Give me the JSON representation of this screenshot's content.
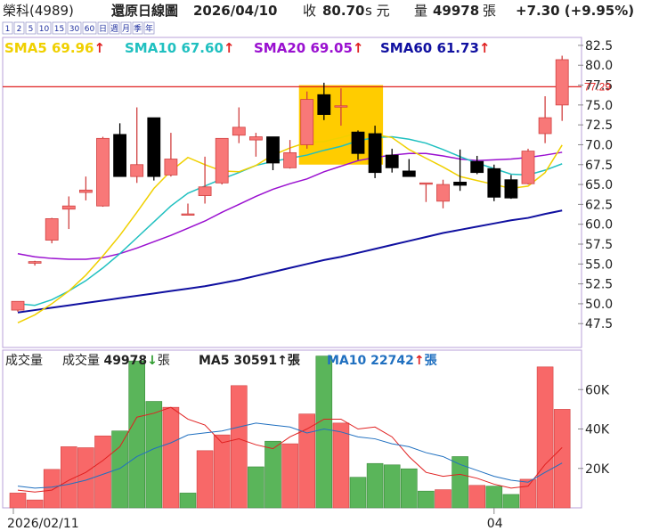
{
  "header": {
    "stock": "榮科(4989)",
    "view": "還原日線圖",
    "date": "2026/04/10",
    "close_label": "收",
    "close": "80.70",
    "close_suffix": "s 元",
    "volume_label": "量",
    "volume": "49978",
    "volume_unit": "張",
    "change": "+7.30 (+9.95%)"
  },
  "period_buttons": [
    "1",
    "2",
    "5",
    "10",
    "15",
    "30",
    "60",
    "日",
    "週",
    "月",
    "季",
    "年"
  ],
  "ma_legend": [
    {
      "label": "SMA5",
      "value": "69.96",
      "arrow": "up",
      "color": "#f0d000"
    },
    {
      "label": "SMA10",
      "value": "67.60",
      "arrow": "up",
      "color": "#20c0c0"
    },
    {
      "label": "SMA20",
      "value": "69.05",
      "arrow": "up",
      "color": "#9a10d0"
    },
    {
      "label": "SMA60",
      "value": "61.73",
      "arrow": "up",
      "color": "#1010a0"
    }
  ],
  "price_line": {
    "value": 77.29,
    "label": "77.29",
    "color": "#e02020"
  },
  "volume_header": {
    "title": "成交量",
    "vol_label": "成交量",
    "vol_value": "49978",
    "vol_arrow": "down",
    "vol_unit": "張",
    "ma5_label": "MA5",
    "ma5_value": "30591",
    "ma5_arrow": "up",
    "ma5_unit": "張",
    "ma10_label": "MA10",
    "ma10_value": "22742",
    "ma10_arrow": "up",
    "ma10_unit": "張"
  },
  "colors": {
    "up": "#f87878",
    "down": "#000000",
    "vol_up": "#f86868",
    "vol_down": "#5ab55a",
    "highlight": "#ffcc00",
    "border": "#b8a0d8"
  },
  "chart_data": {
    "type": "candlestick",
    "x_labels": [
      {
        "index": 0,
        "label": "2026/02/11"
      },
      {
        "index": 28,
        "label": "04"
      }
    ],
    "price_ylim": [
      44.5,
      83.5
    ],
    "price_ticks": [
      "82.5",
      "80.0",
      "77.5",
      "75.0",
      "72.5",
      "70.0",
      "67.5",
      "65.0",
      "62.5",
      "60.0",
      "57.5",
      "55.0",
      "52.5",
      "50.0",
      "47.5"
    ],
    "volume_ylim": [
      0,
      80000
    ],
    "volume_ticks": [
      {
        "value": 60000,
        "label": "60K"
      },
      {
        "value": 40000,
        "label": "40K"
      },
      {
        "value": 20000,
        "label": "20K"
      }
    ],
    "highlight_range": {
      "from_index": 17,
      "to_index": 21,
      "price_from": 67.5,
      "price_to": 77.5
    },
    "candles": [
      {
        "o": 49.2,
        "h": 50.3,
        "l": 49.0,
        "c": 50.3
      },
      {
        "o": 55.1,
        "h": 55.4,
        "l": 54.8,
        "c": 55.3
      },
      {
        "o": 58.0,
        "h": 60.8,
        "l": 57.6,
        "c": 60.7
      },
      {
        "o": 61.9,
        "h": 63.5,
        "l": 59.4,
        "c": 62.3
      },
      {
        "o": 64.0,
        "h": 66.0,
        "l": 63.0,
        "c": 64.3
      },
      {
        "o": 62.3,
        "h": 71.0,
        "l": 62.2,
        "c": 70.8
      },
      {
        "o": 71.3,
        "h": 72.7,
        "l": 66.0,
        "c": 66.0
      },
      {
        "o": 66.0,
        "h": 74.7,
        "l": 65.2,
        "c": 67.5
      },
      {
        "o": 73.4,
        "h": 73.4,
        "l": 65.5,
        "c": 66.0
      },
      {
        "o": 66.2,
        "h": 71.5,
        "l": 66.0,
        "c": 68.2
      },
      {
        "o": 61.3,
        "h": 62.6,
        "l": 61.1,
        "c": 61.3
      },
      {
        "o": 63.6,
        "h": 68.5,
        "l": 62.6,
        "c": 64.7
      },
      {
        "o": 65.2,
        "h": 70.8,
        "l": 65.0,
        "c": 70.8
      },
      {
        "o": 71.2,
        "h": 74.7,
        "l": 70.2,
        "c": 72.2
      },
      {
        "o": 70.6,
        "h": 71.5,
        "l": 68.5,
        "c": 71.0
      },
      {
        "o": 71.0,
        "h": 71.0,
        "l": 66.8,
        "c": 67.7
      },
      {
        "o": 67.1,
        "h": 70.6,
        "l": 67.0,
        "c": 69.0
      },
      {
        "o": 70.0,
        "h": 76.7,
        "l": 69.5,
        "c": 75.7
      },
      {
        "o": 76.3,
        "h": 77.8,
        "l": 73.1,
        "c": 73.8
      },
      {
        "o": 74.9,
        "h": 77.1,
        "l": 72.4,
        "c": 74.9
      },
      {
        "o": 71.6,
        "h": 71.8,
        "l": 68.1,
        "c": 68.9
      },
      {
        "o": 71.4,
        "h": 72.4,
        "l": 65.8,
        "c": 66.5
      },
      {
        "o": 68.7,
        "h": 69.5,
        "l": 66.5,
        "c": 67.1
      },
      {
        "o": 66.7,
        "h": 68.2,
        "l": 66.0,
        "c": 66.0
      },
      {
        "o": 65.2,
        "h": 65.2,
        "l": 62.8,
        "c": 65.2
      },
      {
        "o": 62.9,
        "h": 65.6,
        "l": 62.0,
        "c": 65.0
      },
      {
        "o": 65.3,
        "h": 69.4,
        "l": 64.2,
        "c": 64.9
      },
      {
        "o": 67.9,
        "h": 68.6,
        "l": 66.3,
        "c": 66.5
      },
      {
        "o": 67.0,
        "h": 67.5,
        "l": 62.9,
        "c": 63.4
      },
      {
        "o": 65.6,
        "h": 66.2,
        "l": 63.2,
        "c": 63.3
      },
      {
        "o": 65.1,
        "h": 69.5,
        "l": 65.0,
        "c": 69.2
      },
      {
        "o": 71.4,
        "h": 76.1,
        "l": 70.2,
        "c": 73.4
      },
      {
        "o": 75.0,
        "h": 81.2,
        "l": 73.0,
        "c": 80.7
      }
    ],
    "sma5": [
      47.6,
      48.6,
      50.0,
      51.6,
      53.6,
      56.0,
      58.6,
      61.5,
      64.5,
      66.7,
      68.4,
      67.5,
      66.7,
      66.6,
      67.4,
      68.7,
      69.6,
      70.3,
      70.4,
      70.9,
      71.5,
      71.3,
      70.9,
      69.4,
      68.3,
      67.2,
      66.0,
      65.5,
      65.0,
      64.5,
      64.8,
      66.5,
      69.96
    ],
    "sma10": [
      50.0,
      49.8,
      50.5,
      51.6,
      52.9,
      54.5,
      56.3,
      58.3,
      60.3,
      62.3,
      63.9,
      64.8,
      65.7,
      66.5,
      67.4,
      67.9,
      68.3,
      68.7,
      69.3,
      69.8,
      70.5,
      70.9,
      71.0,
      70.7,
      70.2,
      69.4,
      68.5,
      67.7,
      67.0,
      66.3,
      66.2,
      66.8,
      67.6
    ],
    "sma20": [
      56.3,
      55.9,
      55.7,
      55.6,
      55.6,
      55.8,
      56.3,
      57.0,
      57.8,
      58.6,
      59.5,
      60.4,
      61.5,
      62.5,
      63.5,
      64.4,
      65.1,
      65.7,
      66.6,
      67.3,
      68.0,
      68.4,
      68.7,
      68.9,
      68.9,
      68.6,
      68.2,
      68.0,
      68.1,
      68.2,
      68.4,
      68.7,
      69.05
    ],
    "sma60": [
      48.9,
      49.2,
      49.5,
      49.8,
      50.1,
      50.4,
      50.7,
      51.0,
      51.3,
      51.6,
      51.9,
      52.2,
      52.6,
      53.0,
      53.5,
      54.0,
      54.5,
      55.0,
      55.5,
      55.9,
      56.4,
      56.9,
      57.4,
      57.9,
      58.4,
      58.9,
      59.3,
      59.7,
      60.1,
      60.5,
      60.8,
      61.3,
      61.73
    ],
    "volumes": [
      {
        "v": 7500,
        "up": true
      },
      {
        "v": 4000,
        "up": true
      },
      {
        "v": 19500,
        "up": true
      },
      {
        "v": 31000,
        "up": true
      },
      {
        "v": 30500,
        "up": true
      },
      {
        "v": 36500,
        "up": true
      },
      {
        "v": 39000,
        "up": false
      },
      {
        "v": 74500,
        "up": false
      },
      {
        "v": 54000,
        "up": false
      },
      {
        "v": 51000,
        "up": true
      },
      {
        "v": 7500,
        "up": false
      },
      {
        "v": 29000,
        "up": true
      },
      {
        "v": 37000,
        "up": true
      },
      {
        "v": 62000,
        "up": true
      },
      {
        "v": 20800,
        "up": false
      },
      {
        "v": 33800,
        "up": false
      },
      {
        "v": 32500,
        "up": true
      },
      {
        "v": 47600,
        "up": true
      },
      {
        "v": 77000,
        "up": false
      },
      {
        "v": 43000,
        "up": true
      },
      {
        "v": 15500,
        "up": false
      },
      {
        "v": 22500,
        "up": false
      },
      {
        "v": 21800,
        "up": false
      },
      {
        "v": 19800,
        "up": false
      },
      {
        "v": 8500,
        "up": false
      },
      {
        "v": 9200,
        "up": true
      },
      {
        "v": 26000,
        "up": false
      },
      {
        "v": 11400,
        "up": true
      },
      {
        "v": 11000,
        "up": false
      },
      {
        "v": 6800,
        "up": false
      },
      {
        "v": 14500,
        "up": true
      },
      {
        "v": 71500,
        "up": true
      },
      {
        "v": 49978,
        "up": true
      }
    ],
    "vol_ma5": [
      9000,
      8000,
      9000,
      14000,
      18000,
      24000,
      31000,
      46000,
      48000,
      51000,
      45000,
      42000,
      33000,
      35000,
      32000,
      30000,
      36000,
      40000,
      45000,
      45000,
      40000,
      41000,
      36000,
      26000,
      18000,
      16000,
      17000,
      15000,
      12000,
      10000,
      11000,
      22000,
      30591
    ],
    "vol_ma10": [
      11000,
      10000,
      10500,
      12000,
      14000,
      17000,
      20000,
      26000,
      30000,
      33000,
      37000,
      38000,
      39000,
      41000,
      43000,
      42000,
      41000,
      38000,
      40000,
      38500,
      36000,
      35000,
      32500,
      31000,
      28000,
      26000,
      22000,
      19000,
      16000,
      14000,
      13000,
      18000,
      22742
    ]
  }
}
